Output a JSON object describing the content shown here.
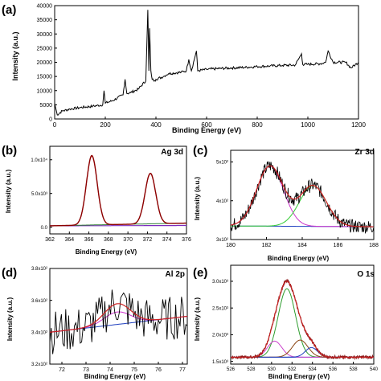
{
  "figure": {
    "panels": [
      {
        "id": "a",
        "letter": "(a)",
        "title": "",
        "xlabel": "Binding Energy (eV)",
        "ylabel": "Intensity (a.u.)"
      },
      {
        "id": "b",
        "letter": "(b)",
        "title": "Ag 3d",
        "xlabel": "Binding Energy (eV)",
        "ylabel": "Intensity (a.u.)"
      },
      {
        "id": "c",
        "letter": "(c)",
        "title": "Zr 3d",
        "xlabel": "Binding Energy (eV)",
        "ylabel": "Intensity (a.u.)"
      },
      {
        "id": "d",
        "letter": "(d)",
        "title": "Al 2p",
        "xlabel": "Binding Energy (eV)",
        "ylabel": "Intensity (a.u.)"
      },
      {
        "id": "e",
        "letter": "(e)",
        "title": "O 1s",
        "xlabel": "Binding Energy (eV)",
        "ylabel": "Intensity (a.u.)"
      }
    ]
  },
  "chart_data": [
    {
      "panel": "a",
      "type": "line",
      "title": "",
      "xlabel": "Binding Energy (eV)",
      "ylabel": "Intensity (a.u.)",
      "xlim": [
        0,
        1200
      ],
      "ylim": [
        0,
        40000
      ],
      "grid": false,
      "xticks": [
        "0",
        "200",
        "400",
        "600",
        "800",
        "1000",
        "1200"
      ],
      "yticks": [
        "0",
        "5000",
        "10000",
        "15000",
        "20000",
        "25000",
        "30000",
        "35000",
        "40000"
      ],
      "series": [
        {
          "color": "#000000",
          "x": [
            0,
            10,
            30,
            60,
            100,
            150,
            190,
            195,
            200,
            230,
            270,
            278,
            285,
            300,
            330,
            360,
            368,
            372,
            375,
            380,
            385,
            395,
            400,
            430,
            440,
            450,
            500,
            520,
            530,
            540,
            560,
            565,
            600,
            650,
            700,
            750,
            800,
            850,
            900,
            950,
            975,
            980,
            1000,
            1050,
            1070,
            1080,
            1100,
            1150,
            1170,
            1200
          ],
          "y": [
            5500,
            1500,
            2800,
            3500,
            4000,
            4500,
            5000,
            10000,
            5600,
            6500,
            8500,
            14000,
            9000,
            9300,
            10500,
            13500,
            38500,
            17000,
            32000,
            17000,
            14000,
            13500,
            14000,
            15000,
            15500,
            16000,
            16500,
            17000,
            21000,
            17000,
            24000,
            17000,
            17500,
            17800,
            18000,
            18200,
            18500,
            18700,
            18900,
            19000,
            23000,
            19200,
            19300,
            19500,
            20000,
            24000,
            20000,
            20000,
            18000,
            20000
          ]
        }
      ]
    },
    {
      "panel": "b",
      "type": "line",
      "title": "Ag 3d",
      "xlabel": "Binding Energy (eV)",
      "ylabel": "Intensity (a.u.)",
      "xlim": [
        362,
        376
      ],
      "ylim": [
        -0.1,
        1.2
      ],
      "xticks": [
        "362",
        "364",
        "366",
        "368",
        "370",
        "372",
        "374",
        "376"
      ],
      "yticks": [
        "0.0",
        "5.0x10³",
        "1.0x10⁴"
      ],
      "peaks": [
        {
          "center": 366.3,
          "height": 1.03,
          "sigma": 0.55
        },
        {
          "center": 372.3,
          "height": 0.75,
          "sigma": 0.55
        }
      ],
      "background": {
        "start": 0.02,
        "end": 0.06,
        "color": "#2e7d32"
      },
      "series": [
        {
          "name": "",
          "color": "#8b0000",
          "role": "fit"
        },
        {
          "name": "",
          "color": "#ff6666",
          "role": "component"
        },
        {
          "name": "",
          "color": "#7b2cbf",
          "role": "baseline"
        }
      ]
    },
    {
      "panel": "c",
      "type": "line",
      "title": "Zr 3d",
      "xlabel": "Binding Energy (eV)",
      "ylabel": "Intensity (a.u.)",
      "xlim": [
        180,
        188
      ],
      "ylim": [
        3.0,
        5.3
      ],
      "xticks": [
        "180",
        "182",
        "184",
        "186",
        "188"
      ],
      "yticks": [
        "3x10²",
        "4x10²",
        "5x10²"
      ],
      "peaks": [
        {
          "center": 182.2,
          "height": 1.55,
          "sigma": 0.75
        },
        {
          "center": 184.6,
          "height": 1.05,
          "sigma": 0.75
        }
      ],
      "background": {
        "start": 3.35,
        "end": 3.33,
        "color": "#1f3fbf"
      },
      "series": [
        {
          "color": "#000000",
          "role": "raw"
        },
        {
          "color": "#cc2222",
          "role": "fit"
        },
        {
          "color": "#cc33cc",
          "role": "component"
        },
        {
          "color": "#33cc33",
          "role": "component"
        },
        {
          "color": "#1f3fbf",
          "role": "baseline"
        }
      ]
    },
    {
      "panel": "d",
      "type": "line",
      "title": "Al 2p",
      "xlabel": "Binding Energy (eV)",
      "ylabel": "Intensity (a.u.)",
      "xlim": [
        71.5,
        77.2
      ],
      "ylim": [
        3.2,
        3.8
      ],
      "xticks": [
        "72",
        "73",
        "74",
        "75",
        "76",
        "77"
      ],
      "yticks": [
        "3.2x10²",
        "3.4x10²",
        "3.6x10²",
        "3.8x10²"
      ],
      "peaks": [
        {
          "center": 74.3,
          "height": 0.13,
          "sigma": 0.55
        }
      ],
      "background": {
        "start": 3.4,
        "end": 3.5,
        "color": "#1f3fbf"
      },
      "series": [
        {
          "color": "#000000",
          "role": "raw"
        },
        {
          "color": "#cc2222",
          "role": "fit"
        },
        {
          "color": "#cc33cc",
          "role": "component"
        },
        {
          "color": "#1f3fbf",
          "role": "baseline"
        }
      ]
    },
    {
      "panel": "e",
      "type": "line",
      "title": "O 1s",
      "xlabel": "Binding Energy (eV)",
      "ylabel": "Intensity (a.u.)",
      "xlim": [
        526,
        540
      ],
      "ylim": [
        1.45,
        3.3
      ],
      "xticks": [
        "526",
        "528",
        "530",
        "532",
        "534",
        "536",
        "538",
        "540"
      ],
      "yticks": [
        "1.5x10³",
        "2.0x10³",
        "2.5x10³",
        "3.0x10³"
      ],
      "peaks": [
        {
          "center": 531.5,
          "height": 1.28,
          "sigma": 0.85,
          "color": "#2e9d2e"
        },
        {
          "center": 530.3,
          "height": 0.3,
          "sigma": 0.7,
          "color": "#cc44cc"
        },
        {
          "center": 532.8,
          "height": 0.32,
          "sigma": 0.75,
          "color": "#8b4513"
        },
        {
          "center": 533.9,
          "height": 0.18,
          "sigma": 0.6,
          "color": "#1f3fbf"
        }
      ],
      "background": {
        "start": 1.58,
        "end": 1.58,
        "color": "#1f3fbf"
      },
      "series": [
        {
          "color": "#8b1a1a",
          "role": "raw"
        },
        {
          "color": "#cc2222",
          "role": "fit"
        }
      ]
    }
  ]
}
